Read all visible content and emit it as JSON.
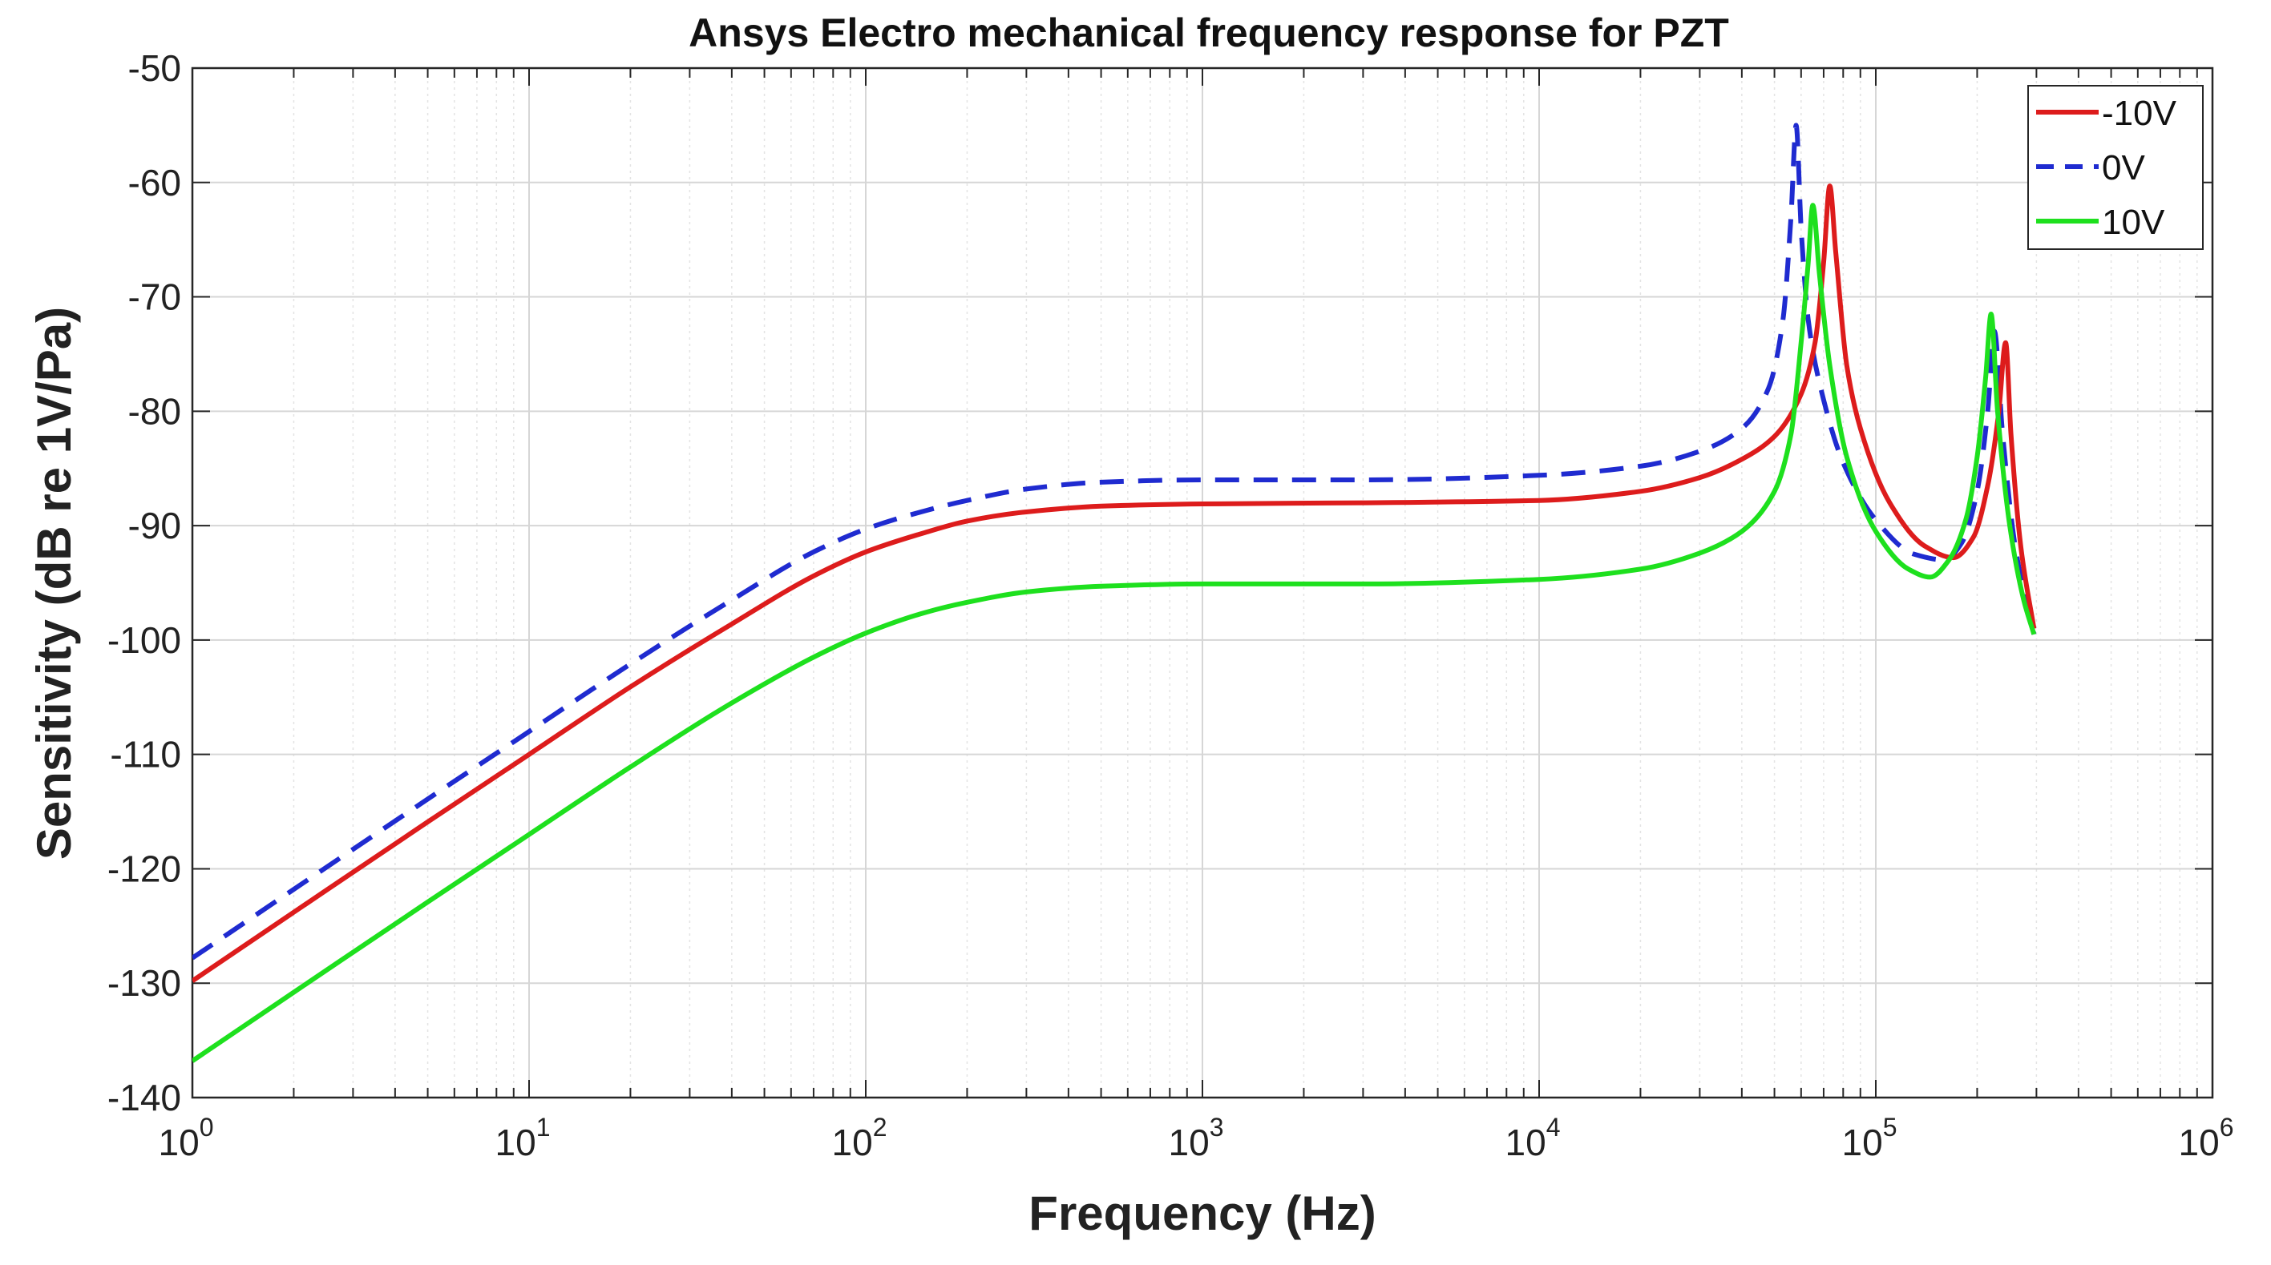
{
  "chart_data": {
    "type": "line",
    "title": "Ansys Electro mechanical frequency response for PZT",
    "xlabel": "Frequency (Hz)",
    "ylabel": "Sensitivity (dB re 1V/Pa)",
    "xscale": "log",
    "xlim": [
      1,
      1000000
    ],
    "ylim": [
      -140,
      -50
    ],
    "grid": true,
    "legend_position": "top-right",
    "x_ticks": [
      {
        "base": "10",
        "exp": "0",
        "value": 1
      },
      {
        "base": "10",
        "exp": "1",
        "value": 10
      },
      {
        "base": "10",
        "exp": "2",
        "value": 100
      },
      {
        "base": "10",
        "exp": "3",
        "value": 1000
      },
      {
        "base": "10",
        "exp": "4",
        "value": 10000
      },
      {
        "base": "10",
        "exp": "5",
        "value": 100000
      },
      {
        "base": "10",
        "exp": "6",
        "value": 1000000
      }
    ],
    "y_ticks": [
      "-50",
      "-60",
      "-70",
      "-80",
      "-90",
      "-100",
      "-110",
      "-120",
      "-130",
      "-140"
    ],
    "series": [
      {
        "name": "-10V",
        "color": "#dd1c1c",
        "dash": "solid",
        "points": [
          [
            1,
            -129.8
          ],
          [
            2,
            -123.8
          ],
          [
            5,
            -115.9
          ],
          [
            10,
            -110.0
          ],
          [
            20,
            -104.1
          ],
          [
            40,
            -98.6
          ],
          [
            70,
            -94.4
          ],
          [
            100,
            -92.3
          ],
          [
            150,
            -90.6
          ],
          [
            200,
            -89.6
          ],
          [
            300,
            -88.8
          ],
          [
            500,
            -88.3
          ],
          [
            1000,
            -88.1
          ],
          [
            3000,
            -88.0
          ],
          [
            10000,
            -87.8
          ],
          [
            20000,
            -87.0
          ],
          [
            30000,
            -85.8
          ],
          [
            40000,
            -84.2
          ],
          [
            50000,
            -82.2
          ],
          [
            60000,
            -78.5
          ],
          [
            66000,
            -74.0
          ],
          [
            70000,
            -67.0
          ],
          [
            73000,
            -60.3
          ],
          [
            76000,
            -66.0
          ],
          [
            82000,
            -76.0
          ],
          [
            90000,
            -81.5
          ],
          [
            110000,
            -88.0
          ],
          [
            140000,
            -91.8
          ],
          [
            170000,
            -92.8
          ],
          [
            195000,
            -91.0
          ],
          [
            215000,
            -86.5
          ],
          [
            232000,
            -80.0
          ],
          [
            243000,
            -74.0
          ],
          [
            252000,
            -82.0
          ],
          [
            270000,
            -92.0
          ],
          [
            295000,
            -99.0
          ]
        ]
      },
      {
        "name": "0V",
        "color": "#1f2bd0",
        "dash": "dashed",
        "points": [
          [
            1,
            -127.8
          ],
          [
            2,
            -121.8
          ],
          [
            5,
            -113.9
          ],
          [
            10,
            -108.0
          ],
          [
            20,
            -102.1
          ],
          [
            40,
            -96.5
          ],
          [
            70,
            -92.3
          ],
          [
            100,
            -90.3
          ],
          [
            150,
            -88.7
          ],
          [
            200,
            -87.8
          ],
          [
            300,
            -86.8
          ],
          [
            500,
            -86.2
          ],
          [
            1000,
            -86.0
          ],
          [
            3000,
            -86.0
          ],
          [
            10000,
            -85.6
          ],
          [
            20000,
            -84.8
          ],
          [
            30000,
            -83.5
          ],
          [
            40000,
            -81.5
          ],
          [
            48000,
            -78.0
          ],
          [
            53000,
            -72.0
          ],
          [
            56000,
            -63.0
          ],
          [
            58000,
            -55.0
          ],
          [
            60000,
            -64.0
          ],
          [
            63000,
            -72.0
          ],
          [
            70000,
            -79.0
          ],
          [
            80000,
            -84.5
          ],
          [
            100000,
            -89.5
          ],
          [
            130000,
            -92.5
          ],
          [
            160000,
            -93.0
          ],
          [
            180000,
            -91.5
          ],
          [
            200000,
            -87.0
          ],
          [
            215000,
            -80.0
          ],
          [
            225000,
            -73.0
          ],
          [
            238000,
            -82.0
          ],
          [
            260000,
            -92.0
          ],
          [
            295000,
            -99.5
          ]
        ]
      },
      {
        "name": "10V",
        "color": "#1ee01e",
        "dash": "solid",
        "points": [
          [
            1,
            -136.8
          ],
          [
            2,
            -130.8
          ],
          [
            5,
            -122.9
          ],
          [
            10,
            -117.0
          ],
          [
            20,
            -111.1
          ],
          [
            40,
            -105.5
          ],
          [
            70,
            -101.5
          ],
          [
            100,
            -99.4
          ],
          [
            150,
            -97.6
          ],
          [
            200,
            -96.7
          ],
          [
            300,
            -95.8
          ],
          [
            500,
            -95.3
          ],
          [
            1000,
            -95.1
          ],
          [
            3000,
            -95.1
          ],
          [
            10000,
            -94.7
          ],
          [
            20000,
            -93.8
          ],
          [
            30000,
            -92.4
          ],
          [
            40000,
            -90.5
          ],
          [
            50000,
            -87.0
          ],
          [
            56000,
            -82.0
          ],
          [
            60000,
            -74.0
          ],
          [
            63000,
            -67.0
          ],
          [
            65000,
            -62.0
          ],
          [
            68000,
            -68.0
          ],
          [
            73000,
            -76.0
          ],
          [
            82000,
            -84.0
          ],
          [
            100000,
            -90.5
          ],
          [
            125000,
            -93.8
          ],
          [
            145000,
            -94.5
          ],
          [
            165000,
            -93.0
          ],
          [
            185000,
            -89.5
          ],
          [
            200000,
            -84.0
          ],
          [
            212000,
            -77.0
          ],
          [
            220000,
            -71.5
          ],
          [
            230000,
            -80.0
          ],
          [
            250000,
            -90.0
          ],
          [
            275000,
            -96.5
          ],
          [
            295000,
            -99.5
          ]
        ]
      }
    ]
  }
}
